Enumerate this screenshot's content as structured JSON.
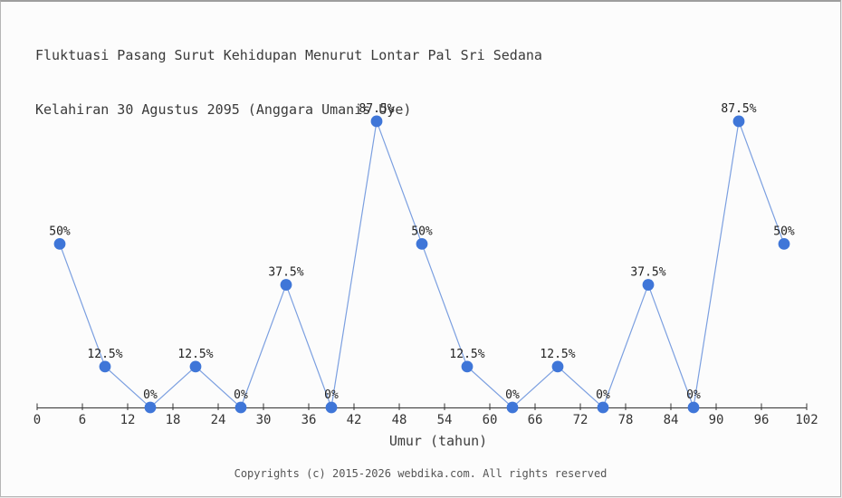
{
  "page": {
    "title_line1": "Fluktuasi Pasang Surut Kehidupan Menurut Lontar Pal Sri Sedana",
    "title_line2": "Kelahiran 30 Agustus 2095 (Anggara Umanis Uye)",
    "footer": "Copyrights (c) 2015-2026 webdika.com. All rights reserved"
  },
  "chart_data": {
    "type": "line",
    "title": "Fluktuasi Pasang Surut Kehidupan Menurut Lontar Pal Sri Sedana Kelahiran 30 Agustus 2095 (Anggara Umanis Uye)",
    "xlabel": "Umur (tahun)",
    "ylabel": "",
    "x": [
      3,
      9,
      15,
      21,
      27,
      33,
      39,
      45,
      51,
      57,
      63,
      69,
      75,
      81,
      87,
      93,
      99
    ],
    "values": [
      50,
      12.5,
      0,
      12.5,
      0,
      37.5,
      0,
      87.5,
      50,
      12.5,
      0,
      12.5,
      0,
      37.5,
      0,
      87.5,
      50
    ],
    "point_labels": [
      "50%",
      "12.5%",
      "0%",
      "12.5%",
      "0%",
      "37.5%",
      "0%",
      "87.5%",
      "50%",
      "12.5%",
      "0%",
      "12.5%",
      "0%",
      "37.5%",
      "0%",
      "87.5%",
      "50%"
    ],
    "x_ticks": [
      0,
      6,
      12,
      18,
      24,
      30,
      36,
      42,
      48,
      54,
      60,
      66,
      72,
      78,
      84,
      90,
      96,
      102
    ],
    "xlim": [
      0,
      102
    ],
    "ylim": [
      0,
      100
    ],
    "grid": false,
    "legend": "none",
    "colors": {
      "line": "#7b9fe0",
      "marker": "#3f76d8",
      "axis": "#333333",
      "tick_label": "#333333",
      "point_label": "#1f1f1f",
      "title": "#3a3a3a",
      "axis_title": "#3d3d3d",
      "footer": "#555555"
    }
  }
}
